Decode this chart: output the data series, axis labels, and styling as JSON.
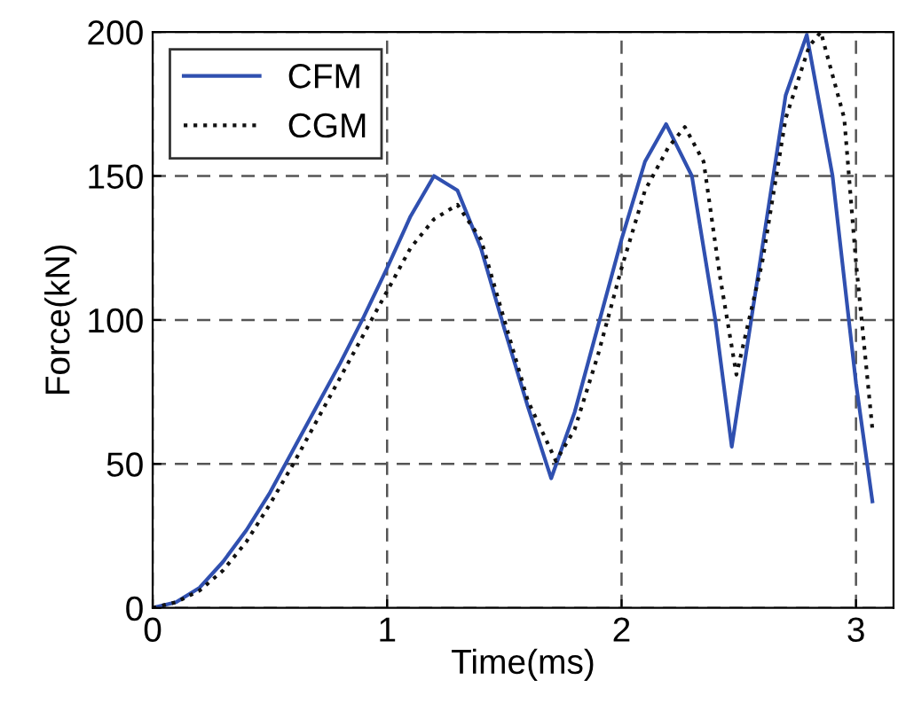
{
  "chart_data": {
    "type": "line",
    "xlabel": "Time(ms)",
    "ylabel": "Force(kN)",
    "xlim": [
      0,
      3.16
    ],
    "ylim": [
      0,
      200
    ],
    "xticks": [
      0,
      1,
      2,
      3
    ],
    "yticks": [
      0,
      50,
      100,
      150,
      200
    ],
    "grid": true,
    "legend": "top left",
    "series": [
      {
        "name": "CFM",
        "color": "#3050b0",
        "line_style": "solid",
        "x": [
          0,
          0.1,
          0.2,
          0.3,
          0.4,
          0.5,
          0.6,
          0.7,
          0.8,
          0.9,
          1.0,
          1.1,
          1.2,
          1.3,
          1.4,
          1.5,
          1.6,
          1.7,
          1.8,
          1.9,
          2.0,
          2.1,
          2.19,
          2.3,
          2.4,
          2.47,
          2.6,
          2.7,
          2.79,
          2.9,
          3.0,
          3.07
        ],
        "values": [
          0,
          2,
          7,
          16,
          27,
          40,
          55,
          70,
          85,
          101,
          118,
          136,
          150,
          145,
          125,
          97,
          70,
          45,
          68,
          98,
          128,
          155,
          168,
          150,
          100,
          56,
          125,
          178,
          199,
          150,
          78,
          37
        ]
      },
      {
        "name": "CGM",
        "color": "#111111",
        "line_style": "dotted",
        "x": [
          0,
          0.1,
          0.2,
          0.3,
          0.4,
          0.5,
          0.6,
          0.7,
          0.8,
          0.9,
          1.0,
          1.1,
          1.2,
          1.3,
          1.4,
          1.5,
          1.6,
          1.72,
          1.8,
          1.9,
          2.0,
          2.1,
          2.2,
          2.27,
          2.35,
          2.42,
          2.49,
          2.6,
          2.7,
          2.8,
          2.85,
          2.95,
          3.0,
          3.07
        ],
        "values": [
          0,
          2,
          6,
          13,
          23,
          36,
          50,
          65,
          80,
          95,
          110,
          125,
          135,
          140,
          128,
          100,
          72,
          51,
          62,
          88,
          118,
          145,
          160,
          167,
          155,
          115,
          81,
          120,
          170,
          195,
          200,
          170,
          120,
          62
        ]
      }
    ]
  }
}
